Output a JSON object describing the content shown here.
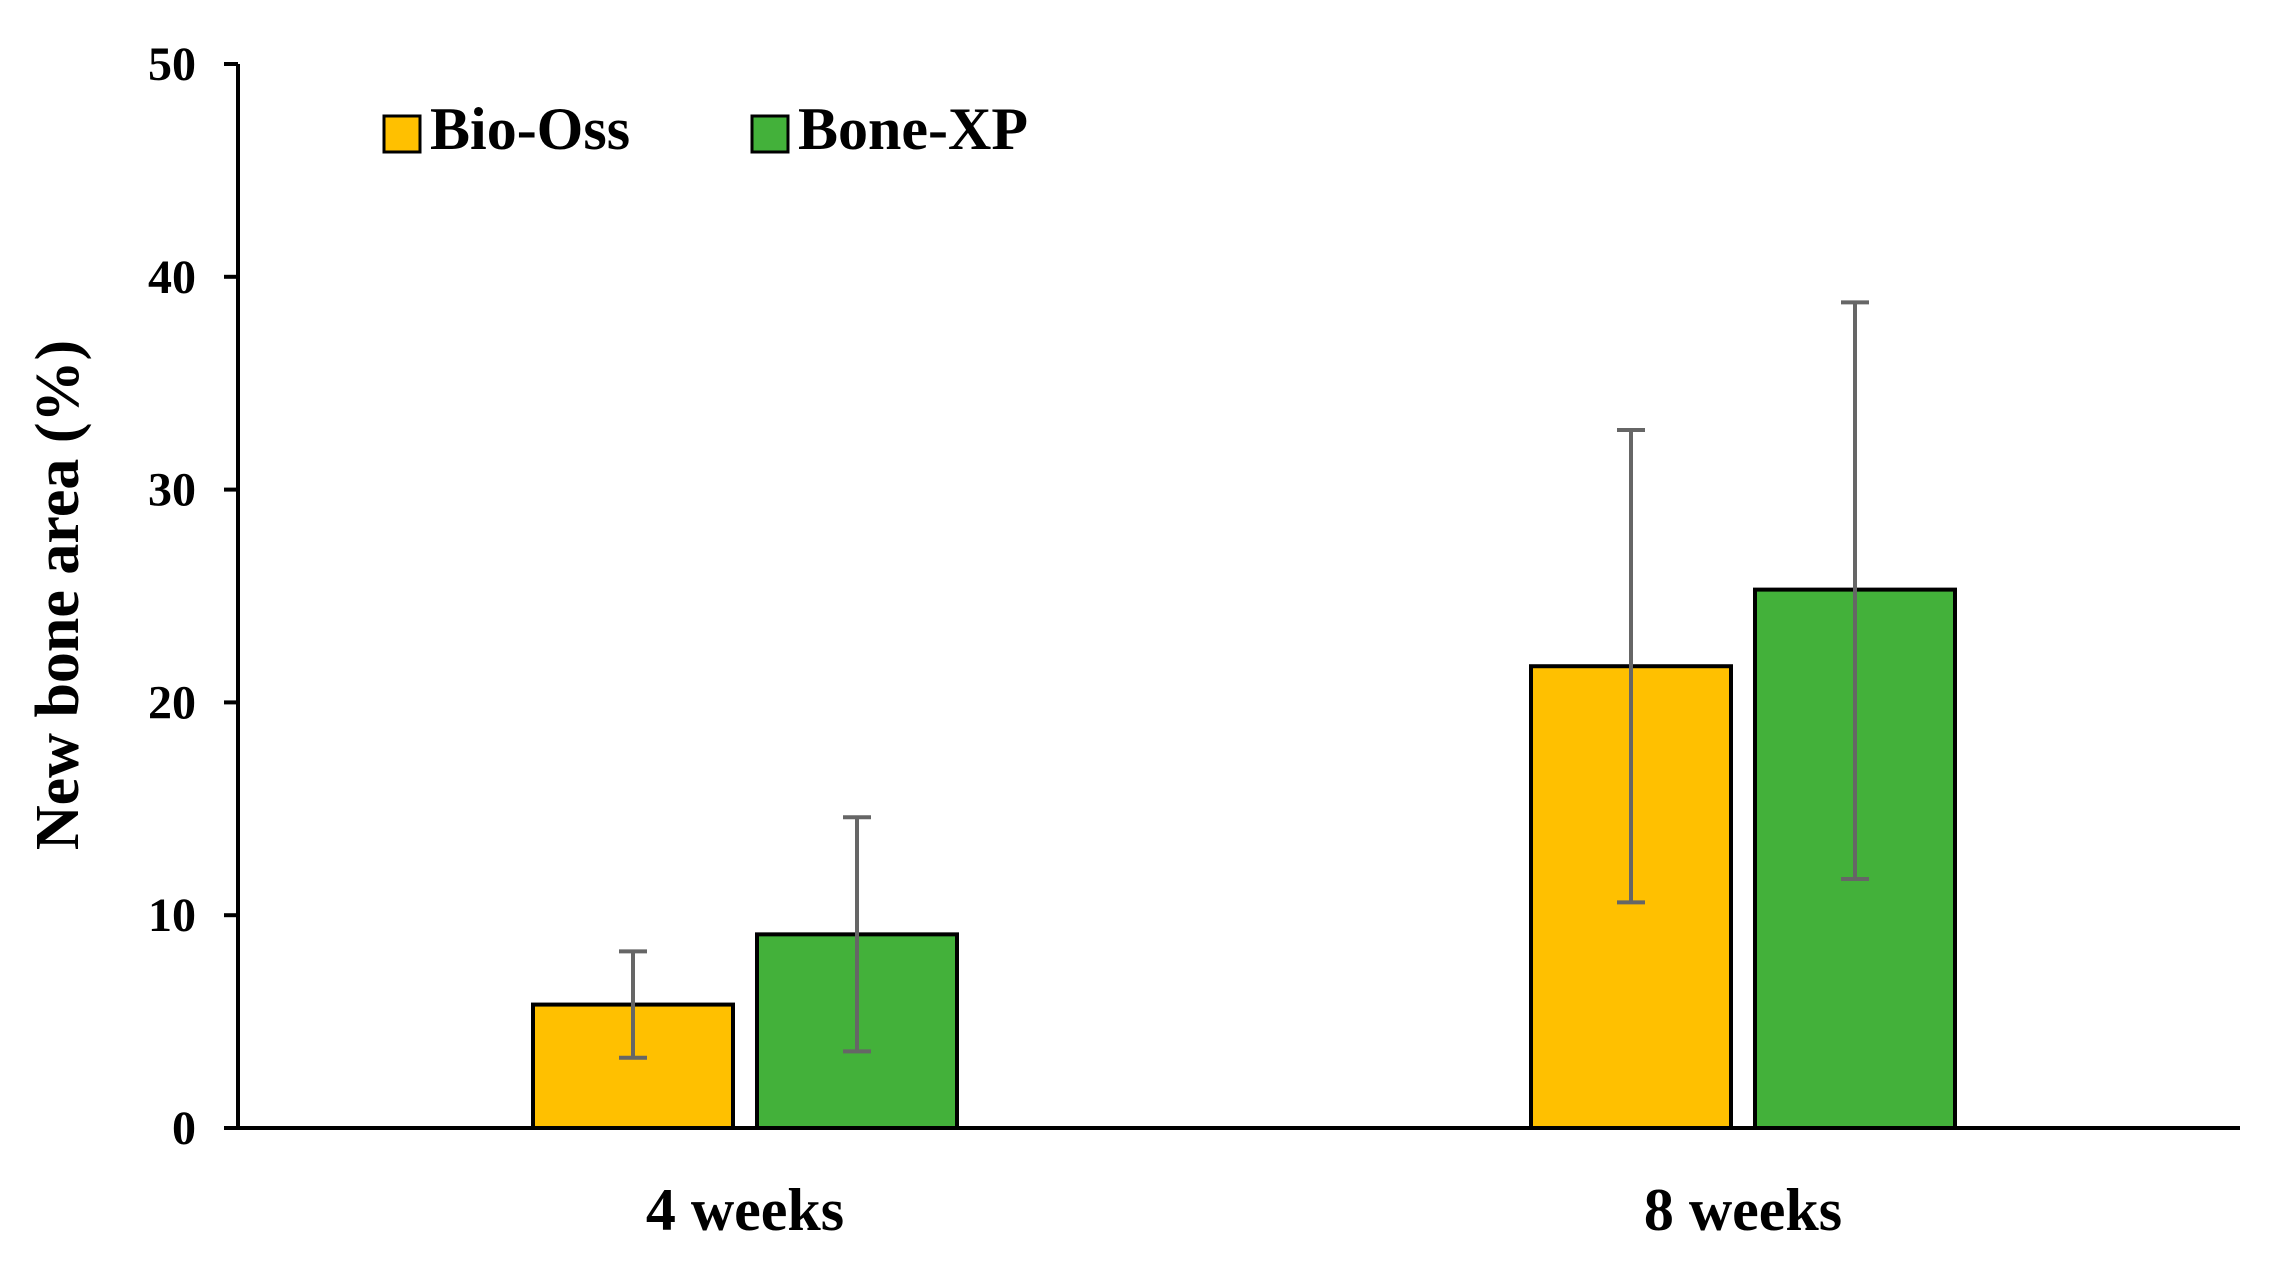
{
  "chart_data": {
    "type": "bar",
    "title": "",
    "xlabel": "",
    "ylabel": "New bone area (%)",
    "ylim": [
      0,
      50
    ],
    "yticks": [
      0,
      10,
      20,
      30,
      40,
      50
    ],
    "categories": [
      "4 weeks",
      "8 weeks"
    ],
    "series": [
      {
        "name": "Bio-Oss",
        "color": "#FFC000",
        "values": [
          5.8,
          21.7
        ],
        "error_low": [
          3.3,
          10.6
        ],
        "error_high": [
          8.3,
          32.8
        ]
      },
      {
        "name": "Bone-XP",
        "color": "#43B13A",
        "values": [
          9.1,
          25.3
        ],
        "error_low": [
          3.6,
          11.7
        ],
        "error_high": [
          14.6,
          38.8
        ]
      }
    ],
    "legend_position": "top-left",
    "grid": false
  }
}
